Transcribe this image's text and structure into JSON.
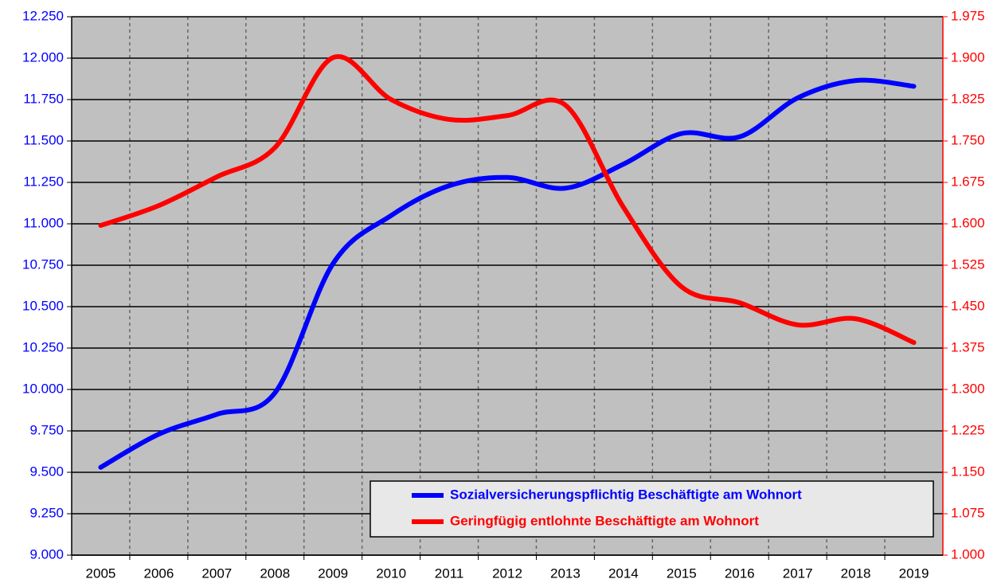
{
  "chart_data": {
    "type": "line",
    "categories": [
      "2005",
      "2006",
      "2007",
      "2008",
      "2009",
      "2010",
      "2011",
      "2012",
      "2013",
      "2014",
      "2015",
      "2016",
      "2017",
      "2018",
      "2019"
    ],
    "series": [
      {
        "name": "Sozialversicherungspflichtig Beschäftigte am Wohnort",
        "color": "#0000ff",
        "axis": "y",
        "values": [
          9530,
          9730,
          9850,
          9980,
          10760,
          11050,
          11230,
          11280,
          11215,
          11360,
          11545,
          11525,
          11760,
          11865,
          11830
        ]
      },
      {
        "name": "Geringfügig entlohnte Beschäftigte am Wohnort",
        "color": "#ff0000",
        "axis": "y2",
        "values": [
          1597,
          1633,
          1685,
          1738,
          1901,
          1825,
          1789,
          1796,
          1815,
          1630,
          1486,
          1457,
          1417,
          1428,
          1385
        ]
      }
    ],
    "ylim": [
      9000,
      12250
    ],
    "yticks": [
      {
        "value": 9000,
        "label": "9.000"
      },
      {
        "value": 9250,
        "label": "9.250"
      },
      {
        "value": 9500,
        "label": "9.500"
      },
      {
        "value": 9750,
        "label": "9.750"
      },
      {
        "value": 10000,
        "label": "10.000"
      },
      {
        "value": 10250,
        "label": "10.250"
      },
      {
        "value": 10500,
        "label": "10.500"
      },
      {
        "value": 10750,
        "label": "10.750"
      },
      {
        "value": 11000,
        "label": "11.000"
      },
      {
        "value": 11250,
        "label": "11.250"
      },
      {
        "value": 11500,
        "label": "11.500"
      },
      {
        "value": 11750,
        "label": "11.750"
      },
      {
        "value": 12000,
        "label": "12.000"
      },
      {
        "value": 12250,
        "label": "12.250"
      }
    ],
    "y2lim": [
      1000,
      1975
    ],
    "y2ticks": [
      {
        "value": 1000,
        "label": "1.000"
      },
      {
        "value": 1075,
        "label": "1.075"
      },
      {
        "value": 1150,
        "label": "1.150"
      },
      {
        "value": 1225,
        "label": "1.225"
      },
      {
        "value": 1300,
        "label": "1.300"
      },
      {
        "value": 1375,
        "label": "1.375"
      },
      {
        "value": 1450,
        "label": "1.450"
      },
      {
        "value": 1525,
        "label": "1.525"
      },
      {
        "value": 1600,
        "label": "1.600"
      },
      {
        "value": 1675,
        "label": "1.675"
      },
      {
        "value": 1750,
        "label": "1.750"
      },
      {
        "value": 1825,
        "label": "1.825"
      },
      {
        "value": 1900,
        "label": "1.900"
      },
      {
        "value": 1975,
        "label": "1.975"
      }
    ],
    "grid": true,
    "legend": "bottom-right"
  }
}
